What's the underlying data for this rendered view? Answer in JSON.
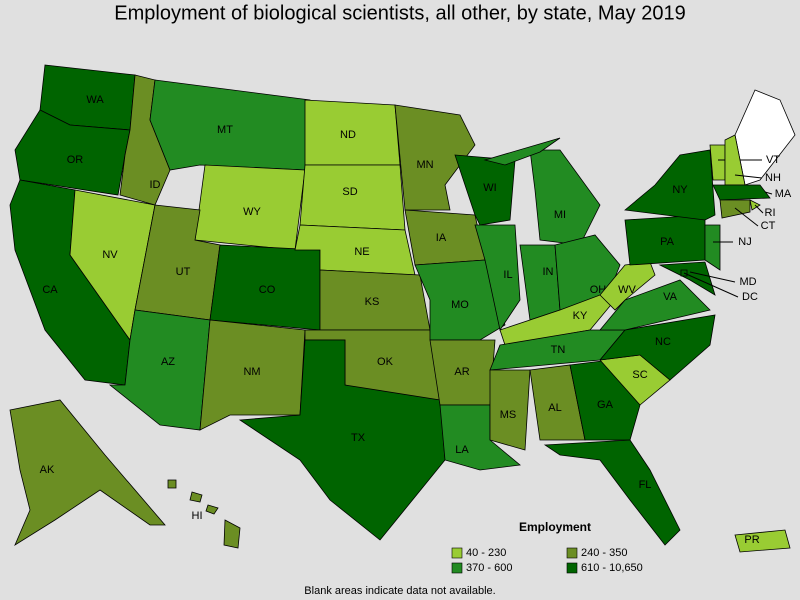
{
  "title": "Employment of biological scientists, all other, by state, May 2019",
  "states": [
    {
      "label": "WA",
      "color": "#006400"
    },
    {
      "label": "OR",
      "color": "#006400"
    },
    {
      "label": "CA",
      "color": "#006400"
    },
    {
      "label": "NV",
      "color": "#99cc33"
    },
    {
      "label": "ID",
      "color": "#6b8e23"
    },
    {
      "label": "MT",
      "color": "#228b22"
    },
    {
      "label": "WY",
      "color": "#99cc33"
    },
    {
      "label": "UT",
      "color": "#6b8e23"
    },
    {
      "label": "AZ",
      "color": "#228b22"
    },
    {
      "label": "CO",
      "color": "#006400"
    },
    {
      "label": "NM",
      "color": "#6b8e23"
    },
    {
      "label": "ND",
      "color": "#99cc33"
    },
    {
      "label": "SD",
      "color": "#99cc33"
    },
    {
      "label": "NE",
      "color": "#99cc33"
    },
    {
      "label": "KS",
      "color": "#6b8e23"
    },
    {
      "label": "OK",
      "color": "#6b8e23"
    },
    {
      "label": "TX",
      "color": "#006400"
    },
    {
      "label": "MN",
      "color": "#6b8e23"
    },
    {
      "label": "IA",
      "color": "#6b8e23"
    },
    {
      "label": "MO",
      "color": "#228b22"
    },
    {
      "label": "AR",
      "color": "#6b8e23"
    },
    {
      "label": "LA",
      "color": "#228b22"
    },
    {
      "label": "WI",
      "color": "#006400"
    },
    {
      "label": "IL",
      "color": "#228b22"
    },
    {
      "label": "MI",
      "color": "#228b22"
    },
    {
      "label": "IN",
      "color": "#228b22"
    },
    {
      "label": "OH",
      "color": "#228b22"
    },
    {
      "label": "KY",
      "color": "#99cc33"
    },
    {
      "label": "TN",
      "color": "#228b22"
    },
    {
      "label": "MS",
      "color": "#6b8e23"
    },
    {
      "label": "AL",
      "color": "#6b8e23"
    },
    {
      "label": "GA",
      "color": "#006400"
    },
    {
      "label": "FL",
      "color": "#006400"
    },
    {
      "label": "SC",
      "color": "#99cc33"
    },
    {
      "label": "NC",
      "color": "#006400"
    },
    {
      "label": "VA",
      "color": "#228b22"
    },
    {
      "label": "WV",
      "color": "#99cc33"
    },
    {
      "label": "PA",
      "color": "#006400"
    },
    {
      "label": "NY",
      "color": "#006400"
    },
    {
      "label": "MD",
      "color": "#006400"
    },
    {
      "label": "DC",
      "color": "#006400"
    },
    {
      "label": "NJ",
      "color": "#228b22"
    },
    {
      "label": "VT",
      "color": "#99cc33"
    },
    {
      "label": "NH",
      "color": "#99cc33"
    },
    {
      "label": "MA",
      "color": "#006400"
    },
    {
      "label": "RI",
      "color": "#99cc33"
    },
    {
      "label": "CT",
      "color": "#6b8e23"
    },
    {
      "label": "AK",
      "color": "#6b8e23"
    },
    {
      "label": "HI",
      "color": "#6b8e23"
    },
    {
      "label": "PR",
      "color": "#99cc33"
    }
  ],
  "legend": {
    "title": "Employment",
    "items": [
      {
        "label": "40 - 230",
        "color": "#99cc33"
      },
      {
        "label": "240 - 350",
        "color": "#6b8e23"
      },
      {
        "label": "370 - 600",
        "color": "#228b22"
      },
      {
        "label": "610 - 10,650",
        "color": "#006400"
      }
    ]
  },
  "footnote": "Blank areas indicate data not available."
}
